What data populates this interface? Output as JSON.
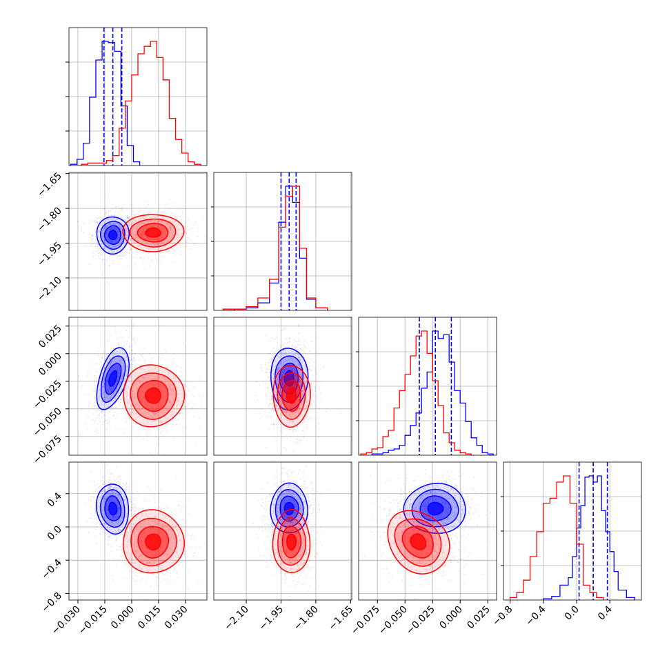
{
  "chart_data": {
    "type": "corner",
    "grid": true,
    "colors": {
      "blue": "#0000ff",
      "red": "#ff0000"
    },
    "parameters": [
      {
        "range": [
          -0.035,
          0.042
        ],
        "ticks": [
          -0.03,
          -0.015,
          0.0,
          0.015,
          0.03
        ],
        "tick_labels": [
          "−0.030",
          "−0.015",
          "0.000",
          "0.015",
          "0.030"
        ]
      },
      {
        "range": [
          -2.24,
          -1.645
        ],
        "ticks": [
          -2.1,
          -1.95,
          -1.8,
          -1.65
        ],
        "tick_labels": [
          "−2.10",
          "−1.95",
          "−1.80",
          "−1.65"
        ]
      },
      {
        "range": [
          -0.092,
          0.033
        ],
        "ticks": [
          -0.075,
          -0.05,
          -0.025,
          0.0,
          0.025
        ],
        "tick_labels": [
          "−0.075",
          "−0.050",
          "−0.025",
          "0.000",
          "0.025"
        ]
      },
      {
        "range": [
          -0.88,
          0.78
        ],
        "ticks": [
          -0.8,
          -0.4,
          0.0,
          0.4
        ],
        "tick_labels": [
          "−0.8",
          "−0.4",
          "0.0",
          "0.4"
        ]
      }
    ],
    "series": [
      {
        "color": "#0000ff",
        "means": [
          -0.0105,
          -1.915,
          -0.0225,
          0.22
        ],
        "sds": [
          0.0045,
          0.04,
          0.014,
          0.15
        ],
        "corrs": [
          [
            0,
            1,
            0.0
          ],
          [
            0,
            2,
            0.5
          ],
          [
            0,
            3,
            -0.1
          ],
          [
            1,
            2,
            0.0
          ],
          [
            1,
            3,
            0.0
          ],
          [
            2,
            3,
            0.0
          ]
        ],
        "quantiles": [
          [
            -0.0155,
            -0.0105,
            -0.0055
          ],
          [
            -1.95,
            -1.915,
            -1.885
          ],
          [
            -0.037,
            -0.0225,
            -0.008
          ],
          [
            0.03,
            0.2,
            0.37
          ]
        ],
        "hist1d": [
          {
            "edges": [
              -0.034,
              -0.0305,
              -0.027,
              -0.0235,
              -0.02,
              -0.0165,
              -0.013,
              -0.0095,
              -0.006,
              -0.0025,
              0.001,
              0.0045
            ],
            "counts": [
              1,
              5,
              18,
              55,
              85,
              100,
              99,
              92,
              48,
              16,
              3
            ]
          },
          {
            "edges": [
              -2.2,
              -2.15,
              -2.1,
              -2.05,
              -2.0,
              -1.96,
              -1.93,
              -1.9,
              -1.87,
              -1.84,
              -1.8,
              -1.75
            ],
            "counts": [
              0,
              1,
              2,
              6,
              22,
              71,
              100,
              87,
              42,
              9,
              2
            ]
          },
          {
            "edges": [
              -0.08,
              -0.07,
              -0.065,
              -0.06,
              -0.055,
              -0.05,
              -0.045,
              -0.04,
              -0.035,
              -0.03,
              -0.025,
              -0.02,
              -0.015,
              -0.01,
              -0.005,
              0.0,
              0.005,
              0.01,
              0.015,
              0.02,
              0.025,
              0.03
            ],
            "counts": [
              1,
              2,
              4,
              5,
              8,
              16,
              24,
              34,
              54,
              67,
              100,
              94,
              97,
              75,
              52,
              42,
              27,
              14,
              8,
              2,
              1
            ]
          },
          {
            "edges": [
              -0.4,
              -0.3,
              -0.2,
              -0.1,
              -0.05,
              0.0,
              0.05,
              0.1,
              0.15,
              0.2,
              0.25,
              0.3,
              0.35,
              0.4,
              0.45,
              0.5,
              0.6,
              0.7
            ],
            "counts": [
              1,
              3,
              12,
              18,
              35,
              58,
              76,
              99,
              100,
              95,
              100,
              72,
              55,
              39,
              23,
              8,
              2
            ]
          }
        ]
      },
      {
        "color": "#ff0000",
        "means": [
          0.012,
          -1.905,
          -0.038,
          -0.18
        ],
        "sds": [
          0.0085,
          0.04,
          0.014,
          0.19
        ],
        "corrs": [
          [
            0,
            1,
            0.0
          ],
          [
            0,
            2,
            0.0
          ],
          [
            0,
            3,
            0.0
          ],
          [
            1,
            2,
            0.0
          ],
          [
            1,
            3,
            0.0
          ],
          [
            2,
            3,
            -0.2
          ]
        ],
        "quantiles": null,
        "hist1d": [
          {
            "edges": [
              -0.028,
              -0.0245,
              -0.021,
              -0.0175,
              -0.014,
              -0.0105,
              -0.007,
              -0.0035,
              0.0,
              0.0035,
              0.007,
              0.0105,
              0.014,
              0.0175,
              0.021,
              0.0245,
              0.028,
              0.0315,
              0.035,
              0.0385
            ],
            "counts": [
              1,
              2,
              2,
              2,
              4,
              8,
              30,
              52,
              73,
              90,
              96,
              100,
              87,
              69,
              38,
              21,
              10,
              3,
              1
            ]
          },
          {
            "edges": [
              -2.2,
              -2.15,
              -2.1,
              -2.05,
              -2.0,
              -1.96,
              -1.93,
              -1.9,
              -1.87,
              -1.84,
              -1.8,
              -1.75
            ],
            "counts": [
              1,
              1,
              3,
              10,
              25,
              67,
              92,
              100,
              50,
              10,
              2
            ]
          },
          {
            "edges": [
              -0.09,
              -0.085,
              -0.08,
              -0.075,
              -0.07,
              -0.065,
              -0.06,
              -0.055,
              -0.05,
              -0.045,
              -0.04,
              -0.035,
              -0.03,
              -0.025,
              -0.02,
              -0.015,
              -0.01,
              -0.005,
              0.0,
              0.005,
              0.01
            ],
            "counts": [
              1,
              2,
              5,
              6,
              15,
              20,
              38,
              52,
              65,
              80,
              96,
              100,
              82,
              60,
              40,
              18,
              10,
              4,
              2,
              1
            ]
          },
          {
            "edges": [
              -0.8,
              -0.72,
              -0.64,
              -0.56,
              -0.48,
              -0.4,
              -0.32,
              -0.24,
              -0.16,
              -0.08,
              0.0,
              0.08,
              0.16,
              0.24,
              0.32
            ],
            "counts": [
              2,
              6,
              16,
              35,
              55,
              78,
              82,
              95,
              100,
              78,
              45,
              12,
              6,
              2
            ]
          }
        ]
      }
    ]
  }
}
